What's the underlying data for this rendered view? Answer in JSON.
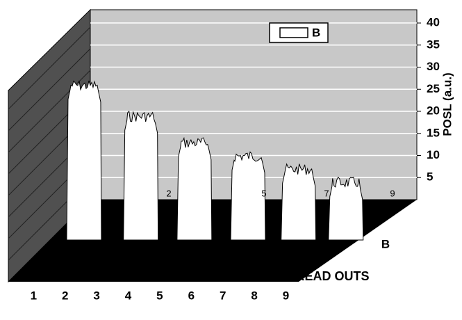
{
  "chart_data": {
    "type": "bar3d",
    "xlabel": "NO. OF READ OUTS",
    "ylabel": "POSL (a.u.)",
    "depth_label": "B",
    "x": [
      2.6,
      4.4,
      6.1,
      7.8,
      9.4,
      10.9
    ],
    "series": [
      {
        "name": "B",
        "color": "#ffffff",
        "values": [
          35,
          28,
          22,
          19,
          16,
          13
        ]
      }
    ],
    "xlim": [
      0.2,
      11.5
    ],
    "xticks": [
      1,
      2,
      3,
      4,
      5,
      6,
      7,
      8,
      9
    ],
    "ylim": [
      0,
      43
    ],
    "yticks": [
      5,
      10,
      15,
      20,
      25,
      30,
      35,
      40
    ],
    "floor_labels": [
      "2",
      "5",
      "7",
      "9"
    ],
    "grid": true,
    "legend": "upper right"
  }
}
